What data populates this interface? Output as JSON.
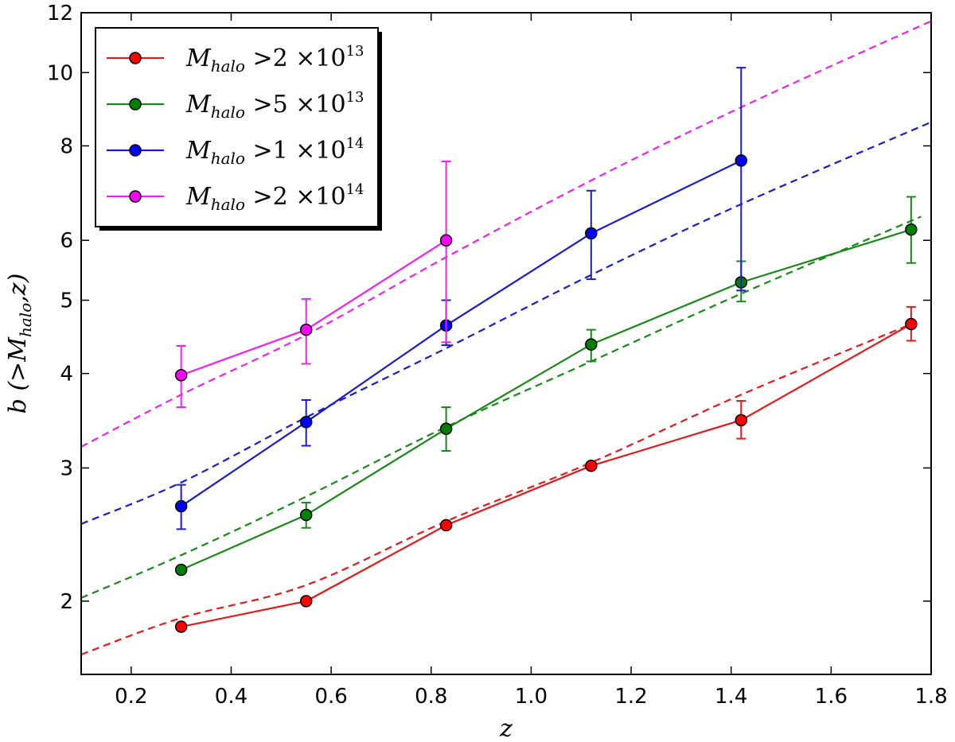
{
  "chart_data": {
    "type": "line",
    "xlabel": "z",
    "ylabel": "b (>M_halo,z)",
    "xlim": [
      0.1,
      1.8
    ],
    "ylim_log": [
      1.6,
      12
    ],
    "y_scale": "log",
    "x_ticks": [
      "0.2",
      "0.4",
      "0.6",
      "0.8",
      "1.0",
      "1.2",
      "1.4",
      "1.6",
      "1.8"
    ],
    "x_tick_values": [
      0.2,
      0.4,
      0.6,
      0.8,
      1.0,
      1.2,
      1.4,
      1.6,
      1.8
    ],
    "y_ticks": [
      "2",
      "3",
      "4",
      "5",
      "6",
      "8",
      "10",
      "12"
    ],
    "y_tick_values": [
      2,
      3,
      4,
      5,
      6,
      8,
      10,
      12
    ],
    "legend_position": "top-left",
    "series": [
      {
        "name": "M_halo >2 ×10^13",
        "legend": {
          "sym": "M",
          "sub": "halo",
          "rel": " >2 ×10",
          "sup": "13"
        },
        "color": "#ff0000",
        "line_color": "#e31a1c",
        "x": [
          0.3,
          0.55,
          0.83,
          1.12,
          1.42,
          1.76
        ],
        "y": [
          1.85,
          2.0,
          2.52,
          3.02,
          3.47,
          4.65
        ],
        "err_low": [
          0.0,
          0.0,
          0.0,
          0.0,
          0.19,
          0.23
        ],
        "err_high": [
          0.0,
          0.0,
          0.0,
          0.0,
          0.21,
          0.25
        ],
        "model_x": [
          0.1,
          0.3,
          0.55,
          0.83,
          1.12,
          1.42,
          1.76
        ],
        "model_y": [
          1.7,
          1.9,
          2.1,
          2.55,
          3.05,
          3.75,
          4.65
        ]
      },
      {
        "name": "M_halo >5 ×10^13",
        "legend": {
          "sym": "M",
          "sub": "halo",
          "rel": " >5 ×10",
          "sup": "13"
        },
        "color": "#008000",
        "line_color": "#188818",
        "x": [
          0.3,
          0.55,
          0.83,
          1.12,
          1.42,
          1.76
        ],
        "y": [
          2.2,
          2.6,
          3.38,
          4.37,
          5.28,
          6.2
        ],
        "err_low": [
          0.0,
          0.1,
          0.22,
          0.22,
          0.3,
          0.6
        ],
        "err_high": [
          0.0,
          0.1,
          0.23,
          0.2,
          0.35,
          0.65
        ],
        "model_x": [
          0.1,
          0.3,
          0.55,
          0.83,
          1.12,
          1.42,
          1.78
        ],
        "model_y": [
          2.02,
          2.3,
          2.75,
          3.4,
          4.15,
          5.1,
          6.45
        ]
      },
      {
        "name": "M_halo >1 ×10^14",
        "legend": {
          "sym": "M",
          "sub": "halo",
          "rel": " >1 ×10",
          "sup": "14"
        },
        "color": "#0000ff",
        "line_color": "#1a1ad0",
        "x": [
          0.3,
          0.55,
          0.83,
          1.12,
          1.42
        ],
        "y": [
          2.67,
          3.45,
          4.63,
          6.13,
          7.65
        ],
        "err_low": [
          0.18,
          0.24,
          0.27,
          0.8,
          2.5
        ],
        "err_high": [
          0.18,
          0.24,
          0.37,
          0.85,
          2.5
        ],
        "model_x": [
          0.1,
          0.3,
          0.55,
          0.83,
          1.12,
          1.42,
          1.8
        ],
        "model_y": [
          2.53,
          2.87,
          3.5,
          4.32,
          5.4,
          6.7,
          8.6
        ]
      },
      {
        "name": "M_halo >2 ×10^14",
        "legend": {
          "sym": "M",
          "sub": "halo",
          "rel": " >2 ×10",
          "sup": "14"
        },
        "color": "#ff00ff",
        "line_color": "#ee22ee",
        "x": [
          0.3,
          0.55,
          0.83
        ],
        "y": [
          3.98,
          4.57,
          6.0
        ],
        "err_low": [
          0.37,
          0.45,
          1.6
        ],
        "err_high": [
          0.37,
          0.45,
          1.63
        ],
        "model_x": [
          0.1,
          0.3,
          0.55,
          0.83,
          1.12,
          1.42,
          1.8
        ],
        "model_y": [
          3.2,
          3.75,
          4.5,
          5.7,
          7.2,
          9.0,
          11.7
        ]
      }
    ]
  }
}
